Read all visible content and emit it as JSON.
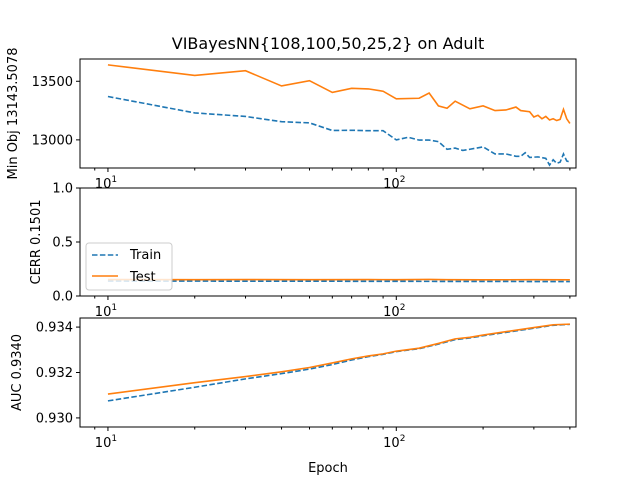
{
  "figure": {
    "title": "VIBayesNN{108,100,50,25,2} on Adult",
    "xlabel": "Epoch"
  },
  "colors": {
    "train": "#1f77b4",
    "test": "#ff7f0e"
  },
  "legend": {
    "placement": "center-left (middle panel)",
    "train_label": "Train",
    "test_label": "Test"
  },
  "chart_data": [
    {
      "type": "line",
      "ylabel": "Min Obj 13143.5078",
      "xscale": "log",
      "xlim": [
        8,
        420
      ],
      "ylim": [
        12760,
        13690
      ],
      "xticks": [
        {
          "value": 10,
          "base": "10",
          "exp": "1"
        },
        {
          "value": 100,
          "base": "10",
          "exp": "2"
        }
      ],
      "yticks": [
        {
          "value": 13000,
          "label": "13000"
        },
        {
          "value": 13500,
          "label": "13500"
        }
      ],
      "series": [
        {
          "name": "Train",
          "style": "dashed",
          "color": "#1f77b4",
          "points": [
            [
              10,
              13370
            ],
            [
              20,
              13230
            ],
            [
              30,
              13200
            ],
            [
              40,
              13155
            ],
            [
              50,
              13145
            ],
            [
              60,
              13080
            ],
            [
              70,
              13082
            ],
            [
              80,
              13078
            ],
            [
              90,
              13078
            ],
            [
              100,
              13000
            ],
            [
              110,
              13022
            ],
            [
              120,
              12998
            ],
            [
              130,
              12998
            ],
            [
              140,
              12985
            ],
            [
              150,
              12920
            ],
            [
              160,
              12930
            ],
            [
              170,
              12910
            ],
            [
              180,
              12920
            ],
            [
              200,
              12940
            ],
            [
              220,
              12880
            ],
            [
              240,
              12880
            ],
            [
              260,
              12860
            ],
            [
              270,
              12860
            ],
            [
              280,
              12890
            ],
            [
              290,
              12850
            ],
            [
              310,
              12855
            ],
            [
              330,
              12842
            ],
            [
              340,
              12785
            ],
            [
              350,
              12830
            ],
            [
              360,
              12800
            ],
            [
              370,
              12810
            ],
            [
              380,
              12880
            ],
            [
              390,
              12820
            ],
            [
              400,
              12810
            ]
          ]
        },
        {
          "name": "Test",
          "style": "solid",
          "color": "#ff7f0e",
          "points": [
            [
              10,
              13640
            ],
            [
              20,
              13550
            ],
            [
              30,
              13590
            ],
            [
              40,
              13460
            ],
            [
              50,
              13505
            ],
            [
              60,
              13405
            ],
            [
              70,
              13440
            ],
            [
              80,
              13435
            ],
            [
              90,
              13415
            ],
            [
              100,
              13350
            ],
            [
              120,
              13355
            ],
            [
              130,
              13400
            ],
            [
              140,
              13290
            ],
            [
              150,
              13270
            ],
            [
              160,
              13330
            ],
            [
              180,
              13265
            ],
            [
              200,
              13290
            ],
            [
              220,
              13250
            ],
            [
              240,
              13255
            ],
            [
              260,
              13280
            ],
            [
              270,
              13250
            ],
            [
              290,
              13240
            ],
            [
              300,
              13195
            ],
            [
              310,
              13210
            ],
            [
              320,
              13180
            ],
            [
              330,
              13200
            ],
            [
              340,
              13170
            ],
            [
              350,
              13180
            ],
            [
              360,
              13165
            ],
            [
              370,
              13175
            ],
            [
              380,
              13260
            ],
            [
              390,
              13180
            ],
            [
              400,
              13140
            ]
          ]
        }
      ]
    },
    {
      "type": "line",
      "ylabel": "CERR 0.1501",
      "xscale": "log",
      "xlim": [
        8,
        420
      ],
      "ylim": [
        0,
        1
      ],
      "xticks": [
        {
          "value": 10,
          "base": "10",
          "exp": "1"
        },
        {
          "value": 100,
          "base": "10",
          "exp": "2"
        }
      ],
      "yticks": [
        {
          "value": 0,
          "label": "0.0"
        },
        {
          "value": 0.5,
          "label": "0.5"
        },
        {
          "value": 1,
          "label": "1.0"
        }
      ],
      "series": [
        {
          "name": "Train",
          "style": "dashed",
          "color": "#1f77b4",
          "points": [
            [
              10,
              0.139
            ],
            [
              20,
              0.138
            ],
            [
              30,
              0.137
            ],
            [
              50,
              0.137
            ],
            [
              80,
              0.136
            ],
            [
              100,
              0.136
            ],
            [
              150,
              0.135
            ],
            [
              200,
              0.135
            ],
            [
              300,
              0.134
            ],
            [
              400,
              0.134
            ]
          ]
        },
        {
          "name": "Test",
          "style": "solid",
          "color": "#ff7f0e",
          "points": [
            [
              10,
              0.152
            ],
            [
              20,
              0.151
            ],
            [
              30,
              0.152
            ],
            [
              50,
              0.151
            ],
            [
              80,
              0.152
            ],
            [
              100,
              0.151
            ],
            [
              130,
              0.153
            ],
            [
              150,
              0.151
            ],
            [
              200,
              0.15
            ],
            [
              300,
              0.151
            ],
            [
              400,
              0.15
            ]
          ]
        }
      ]
    },
    {
      "type": "line",
      "ylabel": "AUC 0.9340",
      "xscale": "log",
      "xlim": [
        8,
        420
      ],
      "ylim": [
        0.9296,
        0.9344
      ],
      "xticks": [
        {
          "value": 10,
          "base": "10",
          "exp": "1"
        },
        {
          "value": 100,
          "base": "10",
          "exp": "2"
        }
      ],
      "yticks": [
        {
          "value": 0.93,
          "label": "0.930"
        },
        {
          "value": 0.932,
          "label": "0.932"
        },
        {
          "value": 0.934,
          "label": "0.934"
        }
      ],
      "series": [
        {
          "name": "Train",
          "style": "dashed",
          "color": "#1f77b4",
          "points": [
            [
              10,
              0.93075
            ],
            [
              20,
              0.93135
            ],
            [
              30,
              0.93172
            ],
            [
              40,
              0.93195
            ],
            [
              50,
              0.93215
            ],
            [
              60,
              0.93235
            ],
            [
              70,
              0.93255
            ],
            [
              80,
              0.9327
            ],
            [
              90,
              0.9328
            ],
            [
              100,
              0.93292
            ],
            [
              120,
              0.93305
            ],
            [
              140,
              0.93325
            ],
            [
              160,
              0.93345
            ],
            [
              180,
              0.93352
            ],
            [
              200,
              0.93362
            ],
            [
              250,
              0.9338
            ],
            [
              300,
              0.93395
            ],
            [
              350,
              0.93408
            ],
            [
              400,
              0.93412
            ]
          ]
        },
        {
          "name": "Test",
          "style": "solid",
          "color": "#ff7f0e",
          "points": [
            [
              10,
              0.93105
            ],
            [
              20,
              0.93155
            ],
            [
              30,
              0.93182
            ],
            [
              40,
              0.93203
            ],
            [
              50,
              0.93222
            ],
            [
              60,
              0.93242
            ],
            [
              70,
              0.9326
            ],
            [
              80,
              0.93273
            ],
            [
              90,
              0.93282
            ],
            [
              100,
              0.93294
            ],
            [
              120,
              0.93307
            ],
            [
              140,
              0.93328
            ],
            [
              160,
              0.93348
            ],
            [
              180,
              0.93355
            ],
            [
              200,
              0.93365
            ],
            [
              250,
              0.93383
            ],
            [
              300,
              0.93398
            ],
            [
              350,
              0.9341
            ],
            [
              400,
              0.93413
            ]
          ]
        }
      ]
    }
  ]
}
